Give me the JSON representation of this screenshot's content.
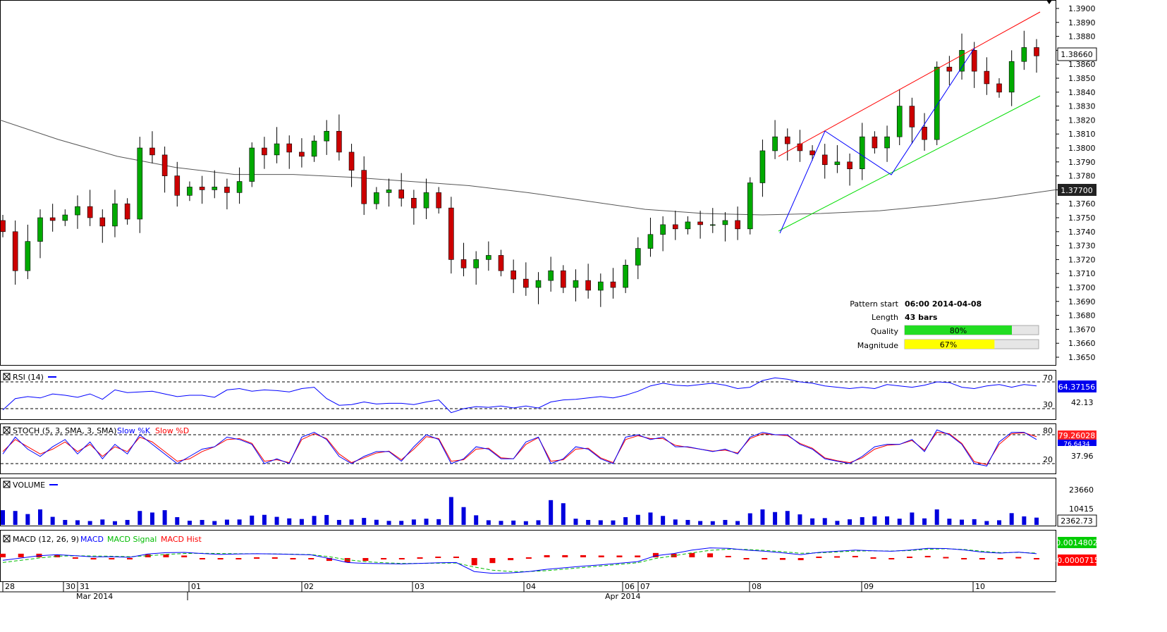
{
  "chart_data": [
    {
      "panel": "price",
      "type": "candlestick",
      "y_ticks": [
        "1.3650",
        "1.3660",
        "1.3670",
        "1.3680",
        "1.3690",
        "1.3700",
        "1.3710",
        "1.3720",
        "1.3730",
        "1.3740",
        "1.3750",
        "1.3760",
        "1.3770",
        "1.3780",
        "1.3790",
        "1.3800",
        "1.3810",
        "1.3820",
        "1.3830",
        "1.3840",
        "1.3850",
        "1.3860",
        "1.3870",
        "1.3880",
        "1.3890",
        "1.3900"
      ],
      "ylim": [
        1.3645,
        1.3905
      ],
      "ma_badge": "1.37700",
      "price_badge": "1.38660",
      "grid": false,
      "series": [
        {
          "name": "candles",
          "values": [
            1.374,
            1.3712,
            1.3733,
            1.375,
            1.3748,
            1.3752,
            1.3758,
            1.375,
            1.3744,
            1.376,
            1.3749,
            1.38,
            1.3795,
            1.378,
            1.3766,
            1.3772,
            1.377,
            1.3772,
            1.3768,
            1.3776,
            1.38,
            1.3795,
            1.3803,
            1.3797,
            1.3794,
            1.3805,
            1.3812,
            1.3797,
            1.3784,
            1.376,
            1.3768,
            1.377,
            1.3764,
            1.3757,
            1.3768,
            1.3757,
            1.372,
            1.3714,
            1.372,
            1.3723,
            1.3712,
            1.3706,
            1.37,
            1.3705,
            1.3712,
            1.37,
            1.3705,
            1.3698,
            1.3704,
            1.37,
            1.3716,
            1.3728,
            1.3738,
            1.3745,
            1.3742,
            1.3747,
            1.3745,
            1.3745,
            1.3748,
            1.3742,
            1.3775,
            1.3798,
            1.3808,
            1.3803,
            1.3798,
            1.3795,
            1.3788,
            1.379,
            1.3785,
            1.3808,
            1.38,
            1.3808,
            1.383,
            1.3815,
            1.3806,
            1.3858,
            1.3855,
            1.387,
            1.3855,
            1.3846,
            1.384,
            1.3862,
            1.3872,
            1.3866
          ]
        }
      ],
      "ma_values": [
        1.382,
        1.3806,
        1.3794,
        1.3786,
        1.3781,
        1.3781,
        1.3779,
        1.3776,
        1.3773,
        1.3768,
        1.3762,
        1.3756,
        1.3753,
        1.3752,
        1.3753,
        1.3755,
        1.3759,
        1.3764,
        1.377
      ],
      "channel_upper": {
        "from": [
          1.3776,
          1.3797
        ],
        "note": ""
      },
      "pattern_info": [
        {
          "label": "Pattern start",
          "value": "06:00 2014-04-08"
        },
        {
          "label": "Length",
          "value": "43 bars"
        },
        {
          "label": "Quality",
          "value": "80%",
          "fraction": 0.8,
          "color": "#22dd22"
        },
        {
          "label": "Magnitude",
          "value": "67%",
          "fraction": 0.67,
          "color": "#ffff00"
        }
      ]
    },
    {
      "panel": "rsi",
      "type": "line",
      "title": "RSI (14)",
      "levels": [
        "70",
        "30"
      ],
      "tick_extra": "42.13",
      "badge": "64.37156",
      "series": [
        {
          "color": "#0000ff",
          "values": [
            28,
            45,
            48,
            46,
            52,
            50,
            47,
            52,
            44,
            58,
            54,
            55,
            56,
            52,
            48,
            50,
            50,
            47,
            58,
            60,
            56,
            58,
            57,
            55,
            60,
            62,
            45,
            35,
            36,
            40,
            37,
            38,
            38,
            36,
            40,
            43,
            24,
            30,
            33,
            32,
            34,
            31,
            34,
            31,
            40,
            43,
            44,
            46,
            48,
            46,
            50,
            56,
            64,
            68,
            65,
            64,
            66,
            68,
            65,
            60,
            62,
            72,
            76,
            74,
            70,
            68,
            64,
            62,
            60,
            62,
            60,
            66,
            64,
            62,
            65,
            70,
            69,
            62,
            60,
            64,
            66,
            62,
            66,
            64
          ]
        }
      ]
    },
    {
      "panel": "stoch",
      "type": "line",
      "title": "STOCH (5, 3, SMA, 3, SMA)",
      "legend": [
        "Slow %K",
        "Slow %D"
      ],
      "levels": [
        "80",
        "20"
      ],
      "tick_extra": "37.96",
      "badges": [
        "79.26028",
        "76.6434"
      ],
      "series": [
        {
          "color": "#0000ff",
          "values": [
            40,
            75,
            50,
            35,
            55,
            70,
            40,
            65,
            30,
            60,
            40,
            80,
            60,
            40,
            20,
            35,
            50,
            55,
            75,
            70,
            60,
            20,
            30,
            20,
            75,
            85,
            70,
            35,
            20,
            35,
            45,
            45,
            25,
            55,
            80,
            70,
            20,
            30,
            55,
            50,
            30,
            30,
            65,
            75,
            20,
            30,
            55,
            50,
            30,
            20,
            75,
            80,
            70,
            75,
            55,
            55,
            50,
            45,
            50,
            40,
            75,
            85,
            80,
            80,
            60,
            50,
            30,
            25,
            20,
            35,
            55,
            60,
            60,
            70,
            45,
            90,
            80,
            60,
            20,
            15,
            65,
            85,
            85,
            70
          ]
        },
        {
          "color": "#ff0000",
          "values": [
            45,
            70,
            55,
            40,
            50,
            65,
            45,
            60,
            35,
            55,
            45,
            75,
            65,
            45,
            25,
            30,
            45,
            55,
            70,
            72,
            62,
            25,
            28,
            22,
            70,
            82,
            72,
            40,
            22,
            32,
            42,
            46,
            28,
            50,
            76,
            72,
            25,
            28,
            50,
            52,
            32,
            30,
            60,
            74,
            25,
            28,
            50,
            52,
            32,
            22,
            70,
            78,
            72,
            72,
            58,
            54,
            50,
            46,
            48,
            42,
            72,
            82,
            80,
            78,
            62,
            52,
            32,
            26,
            22,
            32,
            50,
            58,
            60,
            68,
            48,
            85,
            82,
            62,
            24,
            18,
            60,
            82,
            84,
            76
          ]
        }
      ]
    },
    {
      "panel": "volume",
      "type": "bar",
      "title": "VOLUME",
      "y_ticks": [
        "23660",
        "10415"
      ],
      "badge": "2362.73",
      "values": [
        9500,
        9000,
        7000,
        10000,
        5200,
        3200,
        3000,
        2500,
        3500,
        2400,
        3200,
        9000,
        8000,
        9500,
        5000,
        2700,
        3200,
        2500,
        3400,
        3500,
        6000,
        6500,
        5200,
        4200,
        3800,
        5800,
        6400,
        3200,
        3500,
        4500,
        3300,
        2600,
        2600,
        3500,
        4000,
        3700,
        18000,
        11500,
        6200,
        3000,
        2600,
        2800,
        2400,
        3000,
        16000,
        14000,
        4000,
        3200,
        3000,
        2900,
        5000,
        6500,
        8000,
        5800,
        3500,
        3200,
        2500,
        2400,
        3200,
        2500,
        7500,
        10000,
        8300,
        9000,
        6800,
        4200,
        4400,
        2600,
        3600,
        5000,
        5500,
        5500,
        4000,
        8000,
        4200,
        10000,
        4000,
        3400,
        3700,
        2500,
        3000,
        7600,
        5500,
        4700
      ]
    },
    {
      "panel": "macd",
      "type": "line",
      "title": "MACD (12, 26, 9)",
      "legend": [
        "MACD",
        "MACD Signal",
        "MACD Hist"
      ],
      "badges": [
        "0.0014802",
        "-0.0000715"
      ],
      "series": [
        {
          "color": "#0000ff",
          "values": [
            -1,
            0,
            1,
            1.5,
            1,
            0.5,
            0.6,
            0.3,
            1.8,
            2.4,
            2.5,
            2,
            1.6,
            1.8,
            1.9,
            1.8,
            1.6,
            1.4,
            -0.2,
            -2,
            -2.4,
            -2.5,
            -2.6,
            -2.4,
            -2.1,
            -2,
            -6,
            -6.8,
            -6.6,
            -6,
            -5,
            -4.3,
            -3.6,
            -3,
            -2.3,
            -1.6,
            1,
            2,
            3.5,
            4.5,
            4.3,
            3.5,
            3,
            2.3,
            1.5,
            2.5,
            3,
            3.5,
            3.2,
            3,
            3.5,
            4.3,
            4.2,
            3.6,
            2.6,
            2.2,
            2.6,
            1.9
          ]
        },
        {
          "color": "#00bb00",
          "values": [
            -2,
            -1,
            0,
            0.8,
            1,
            0.9,
            0.8,
            0.6,
            1,
            1.6,
            2,
            2.1,
            2,
            1.9,
            1.9,
            1.8,
            1.7,
            1.5,
            0.6,
            -0.8,
            -1.6,
            -2.1,
            -2.4,
            -2.4,
            -2.3,
            -2.2,
            -4,
            -5.4,
            -6,
            -6,
            -5.6,
            -4.9,
            -4.2,
            -3.5,
            -2.8,
            -2.1,
            -0.2,
            1,
            2.3,
            3.4,
            3.9,
            3.8,
            3.4,
            2.8,
            2.1,
            2.3,
            2.7,
            3.1,
            3.2,
            3.1,
            3.3,
            3.9,
            4.1,
            3.8,
            3,
            2.4,
            2.5,
            2.2
          ]
        }
      ]
    }
  ],
  "x_axis": {
    "day_labels": [
      "28",
      "30",
      "31",
      "01",
      "02",
      "03",
      "04",
      "06",
      "07",
      "08",
      "09",
      "10"
    ],
    "month_labels": [
      "Mar 2014",
      "Apr 2014"
    ]
  },
  "colors": {
    "up": "#00aa00",
    "down": "#cc0000",
    "channel_upper": "#ff0000",
    "channel_lower": "#00dd00",
    "zigzag": "#0000ff",
    "ma": "#555555"
  }
}
